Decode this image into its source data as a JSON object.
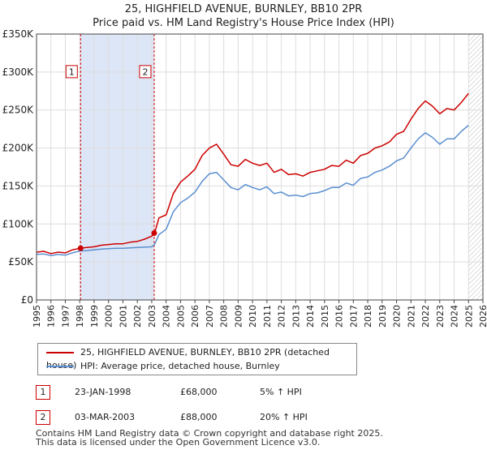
{
  "title": {
    "line1": "25, HIGHFIELD AVENUE, BURNLEY, BB10 2PR",
    "line2": "Price paid vs. HM Land Registry's House Price Index (HPI)"
  },
  "colors": {
    "property": "#cc0000",
    "hpi": "#5b8fd0",
    "shade": "#dde6f7",
    "grid": "#dddddd"
  },
  "legend": {
    "property_label": "25, HIGHFIELD AVENUE, BURNLEY, BB10 2PR (detached house)",
    "hpi_label": "HPI: Average price, detached house, Burnley"
  },
  "sales": [
    {
      "num": "1",
      "date": "23-JAN-1998",
      "price": "£68,000",
      "hpi": "5% ↑ HPI"
    },
    {
      "num": "2",
      "date": "03-MAR-2003",
      "price": "£88,000",
      "hpi": "20% ↑ HPI"
    }
  ],
  "footer": {
    "line1": "Contains HM Land Registry data © Crown copyright and database right 2025.",
    "line2": "This data is licensed under the Open Government Licence v3.0."
  },
  "chart_data": {
    "type": "line",
    "title": "25, HIGHFIELD AVENUE, BURNLEY, BB10 2PR — Price paid vs. HM Land Registry's House Price Index (HPI)",
    "xlim": [
      1995,
      2026
    ],
    "ylim": [
      0,
      350000
    ],
    "y_ticks": [
      {
        "value": 0,
        "label": "£0"
      },
      {
        "value": 50000,
        "label": "£50K"
      },
      {
        "value": 100000,
        "label": "£100K"
      },
      {
        "value": 150000,
        "label": "£150K"
      },
      {
        "value": 200000,
        "label": "£200K"
      },
      {
        "value": 250000,
        "label": "£250K"
      },
      {
        "value": 300000,
        "label": "£300K"
      },
      {
        "value": 350000,
        "label": "£350K"
      }
    ],
    "x_ticks": [
      "1995",
      "1996",
      "1997",
      "1998",
      "1999",
      "2000",
      "2001",
      "2002",
      "2003",
      "2004",
      "2005",
      "2006",
      "2007",
      "2008",
      "2009",
      "2010",
      "2011",
      "2012",
      "2013",
      "2014",
      "2015",
      "2016",
      "2017",
      "2018",
      "2019",
      "2020",
      "2021",
      "2022",
      "2023",
      "2024",
      "2025",
      "2026"
    ],
    "shaded_period": [
      1998.06,
      2003.17
    ],
    "future_hatch_from": 2025.0,
    "sale_markers": [
      {
        "label": "1",
        "x": 1998.06,
        "y": 68000
      },
      {
        "label": "2",
        "x": 2003.17,
        "y": 88000
      }
    ],
    "series": [
      {
        "name": "25, HIGHFIELD AVENUE, BURNLEY, BB10 2PR (detached house)",
        "color": "#cc0000",
        "x": [
          1995.0,
          1995.5,
          1996.0,
          1996.5,
          1997.0,
          1997.5,
          1998.0,
          1998.5,
          1999.0,
          1999.5,
          2000.0,
          2000.5,
          2001.0,
          2001.5,
          2002.0,
          2002.5,
          2003.0,
          2003.2,
          2003.5,
          2004.0,
          2004.5,
          2005.0,
          2005.5,
          2006.0,
          2006.5,
          2007.0,
          2007.5,
          2008.0,
          2008.5,
          2009.0,
          2009.5,
          2010.0,
          2010.5,
          2011.0,
          2011.5,
          2012.0,
          2012.5,
          2013.0,
          2013.5,
          2014.0,
          2014.5,
          2015.0,
          2015.5,
          2016.0,
          2016.5,
          2017.0,
          2017.5,
          2018.0,
          2018.5,
          2019.0,
          2019.5,
          2020.0,
          2020.5,
          2021.0,
          2021.5,
          2022.0,
          2022.5,
          2023.0,
          2023.5,
          2024.0,
          2024.5,
          2025.0
        ],
        "values": [
          63000,
          64000,
          61000,
          63000,
          62000,
          66000,
          68000,
          69000,
          70000,
          72000,
          73000,
          74000,
          74000,
          76000,
          77000,
          80000,
          84000,
          88000,
          108000,
          112000,
          140000,
          155000,
          163000,
          172000,
          190000,
          200000,
          205000,
          192000,
          178000,
          176000,
          185000,
          180000,
          177000,
          180000,
          168000,
          172000,
          165000,
          166000,
          163000,
          168000,
          170000,
          172000,
          177000,
          176000,
          184000,
          180000,
          190000,
          193000,
          200000,
          203000,
          208000,
          218000,
          222000,
          238000,
          252000,
          262000,
          255000,
          245000,
          252000,
          250000,
          260000,
          272000
        ]
      },
      {
        "name": "HPI: Average price, detached house, Burnley",
        "color": "#5b8fd0",
        "x": [
          1995.0,
          1995.5,
          1996.0,
          1996.5,
          1997.0,
          1997.5,
          1998.0,
          1998.5,
          1999.0,
          1999.5,
          2000.0,
          2000.5,
          2001.0,
          2001.5,
          2002.0,
          2002.5,
          2003.0,
          2003.2,
          2003.5,
          2004.0,
          2004.5,
          2005.0,
          2005.5,
          2006.0,
          2006.5,
          2007.0,
          2007.5,
          2008.0,
          2008.5,
          2009.0,
          2009.5,
          2010.0,
          2010.5,
          2011.0,
          2011.5,
          2012.0,
          2012.5,
          2013.0,
          2013.5,
          2014.0,
          2014.5,
          2015.0,
          2015.5,
          2016.0,
          2016.5,
          2017.0,
          2017.5,
          2018.0,
          2018.5,
          2019.0,
          2019.5,
          2020.0,
          2020.5,
          2021.0,
          2021.5,
          2022.0,
          2022.5,
          2023.0,
          2023.5,
          2024.0,
          2024.5,
          2025.0
        ],
        "values": [
          60000,
          60500,
          58500,
          60000,
          59000,
          62000,
          64500,
          65000,
          66000,
          67000,
          67500,
          68000,
          68000,
          68500,
          69000,
          69500,
          70000,
          73000,
          86000,
          93000,
          116000,
          128000,
          134000,
          142000,
          156000,
          166000,
          168000,
          158000,
          148000,
          145000,
          152000,
          148000,
          145000,
          149000,
          140000,
          142000,
          137000,
          138000,
          136000,
          140000,
          141000,
          144000,
          148000,
          148000,
          154000,
          151000,
          160000,
          162000,
          168000,
          171000,
          176000,
          183000,
          187000,
          200000,
          212000,
          220000,
          214000,
          205000,
          212000,
          212000,
          222000,
          230000
        ]
      }
    ]
  }
}
